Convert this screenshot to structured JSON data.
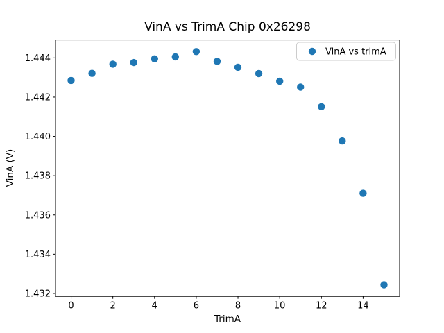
{
  "figure": {
    "background_color": "#ffffff",
    "spine_color": "#000000",
    "tick_color": "#000000",
    "legend_border_color": "#cccccc"
  },
  "chart_data": {
    "type": "scatter",
    "title": "VinA vs TrimA Chip 0x26298",
    "xlabel": "TrimA",
    "ylabel": "VinA (V)",
    "grid": false,
    "xlim": [
      -0.75,
      15.75
    ],
    "ylim": [
      1.43185,
      1.44491
    ],
    "xticks": [
      0,
      2,
      4,
      6,
      8,
      10,
      12,
      14
    ],
    "xtick_labels": [
      "0",
      "2",
      "4",
      "6",
      "8",
      "10",
      "12",
      "14"
    ],
    "yticks": [
      1.432,
      1.434,
      1.436,
      1.438,
      1.44,
      1.442,
      1.444
    ],
    "ytick_labels": [
      "1.432",
      "1.434",
      "1.436",
      "1.438",
      "1.440",
      "1.442",
      "1.444"
    ],
    "legend": {
      "position": "upper right",
      "entries": [
        {
          "label": "VinA vs trimA",
          "marker": "circle",
          "marker_color": "#1f77b4"
        }
      ]
    },
    "series": [
      {
        "name": "VinA vs trimA",
        "color": "#1f77b4",
        "marker_radius_px": 5.2,
        "x": [
          0,
          1,
          2,
          3,
          4,
          5,
          6,
          7,
          8,
          9,
          10,
          11,
          12,
          13,
          14,
          15
        ],
        "y": [
          1.44285,
          1.44321,
          1.44368,
          1.44376,
          1.44395,
          1.44405,
          1.44432,
          1.44382,
          1.44352,
          1.4432,
          1.44281,
          1.44251,
          1.44151,
          1.43977,
          1.4371,
          1.43244
        ]
      }
    ]
  }
}
